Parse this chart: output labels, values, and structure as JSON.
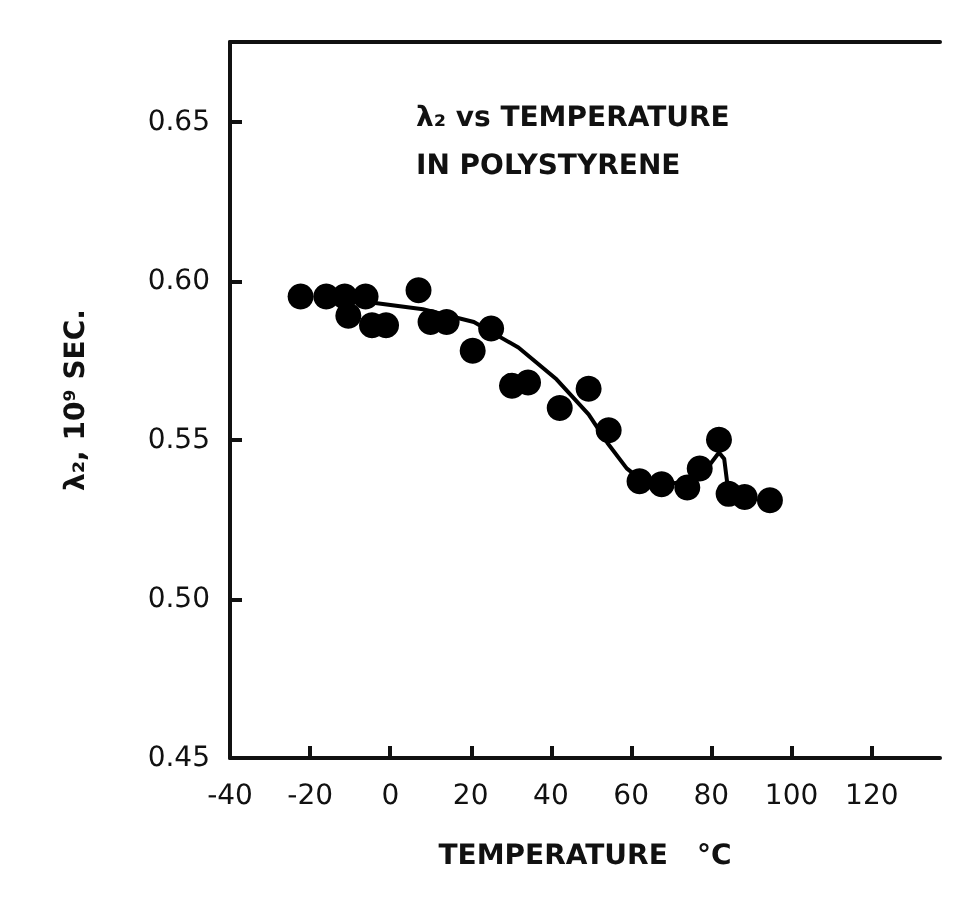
{
  "chart_data": {
    "type": "scatter",
    "title": "λ₂ vs TEMPERATURE IN POLYSTYRENE",
    "xlabel": "TEMPERATURE   °C",
    "ylabel": "λ₂, 10⁹ SEC.",
    "xlim": [
      -40,
      137
    ],
    "xticks": [
      -40,
      -20,
      0,
      20,
      40,
      60,
      80,
      100,
      120
    ],
    "ylim": [
      0.45,
      0.675
    ],
    "yticks": [
      {
        "value": 0.45,
        "label": "0.45"
      },
      {
        "value": 0.5,
        "label": "0.50"
      },
      {
        "value": 0.55,
        "label": "0.55"
      },
      {
        "value": 0.6,
        "label": "0.60"
      },
      {
        "value": 0.65,
        "label": "0.65"
      }
    ],
    "grid": false,
    "marker": "circle",
    "series": [
      {
        "color": "#000000",
        "x": [
          -22.4,
          -16,
          -11.4,
          -10.5,
          -6.2,
          -4.6,
          -1.1,
          7,
          10,
          14,
          20.5,
          25.1,
          30.3,
          34.3,
          42.2,
          49.4,
          54.4,
          62.1,
          67.6,
          74,
          77.1,
          81.9,
          84.3,
          88.3,
          94.6
        ],
        "values": [
          0.595,
          0.595,
          0.595,
          0.589,
          0.595,
          0.586,
          0.586,
          0.597,
          0.587,
          0.587,
          0.578,
          0.585,
          0.567,
          0.568,
          0.56,
          0.566,
          0.553,
          0.537,
          0.536,
          0.535,
          0.541,
          0.55,
          0.533,
          0.532,
          0.531
        ]
      },
      {
        "type": "line",
        "color": "#000000",
        "marker": "none",
        "line_style": "solid",
        "x": [
          -3.8,
          8.1,
          20.8,
          31.9,
          41.4,
          49.4,
          54.1,
          58.9,
          62.9,
          68.4,
          74.8,
          79.5,
          81.9,
          83.2,
          84.3
        ],
        "values": [
          0.593,
          0.591,
          0.587,
          0.579,
          0.569,
          0.558,
          0.549,
          0.541,
          0.537,
          0.536,
          0.537,
          0.542,
          0.546,
          0.544,
          0.533
        ]
      }
    ]
  }
}
